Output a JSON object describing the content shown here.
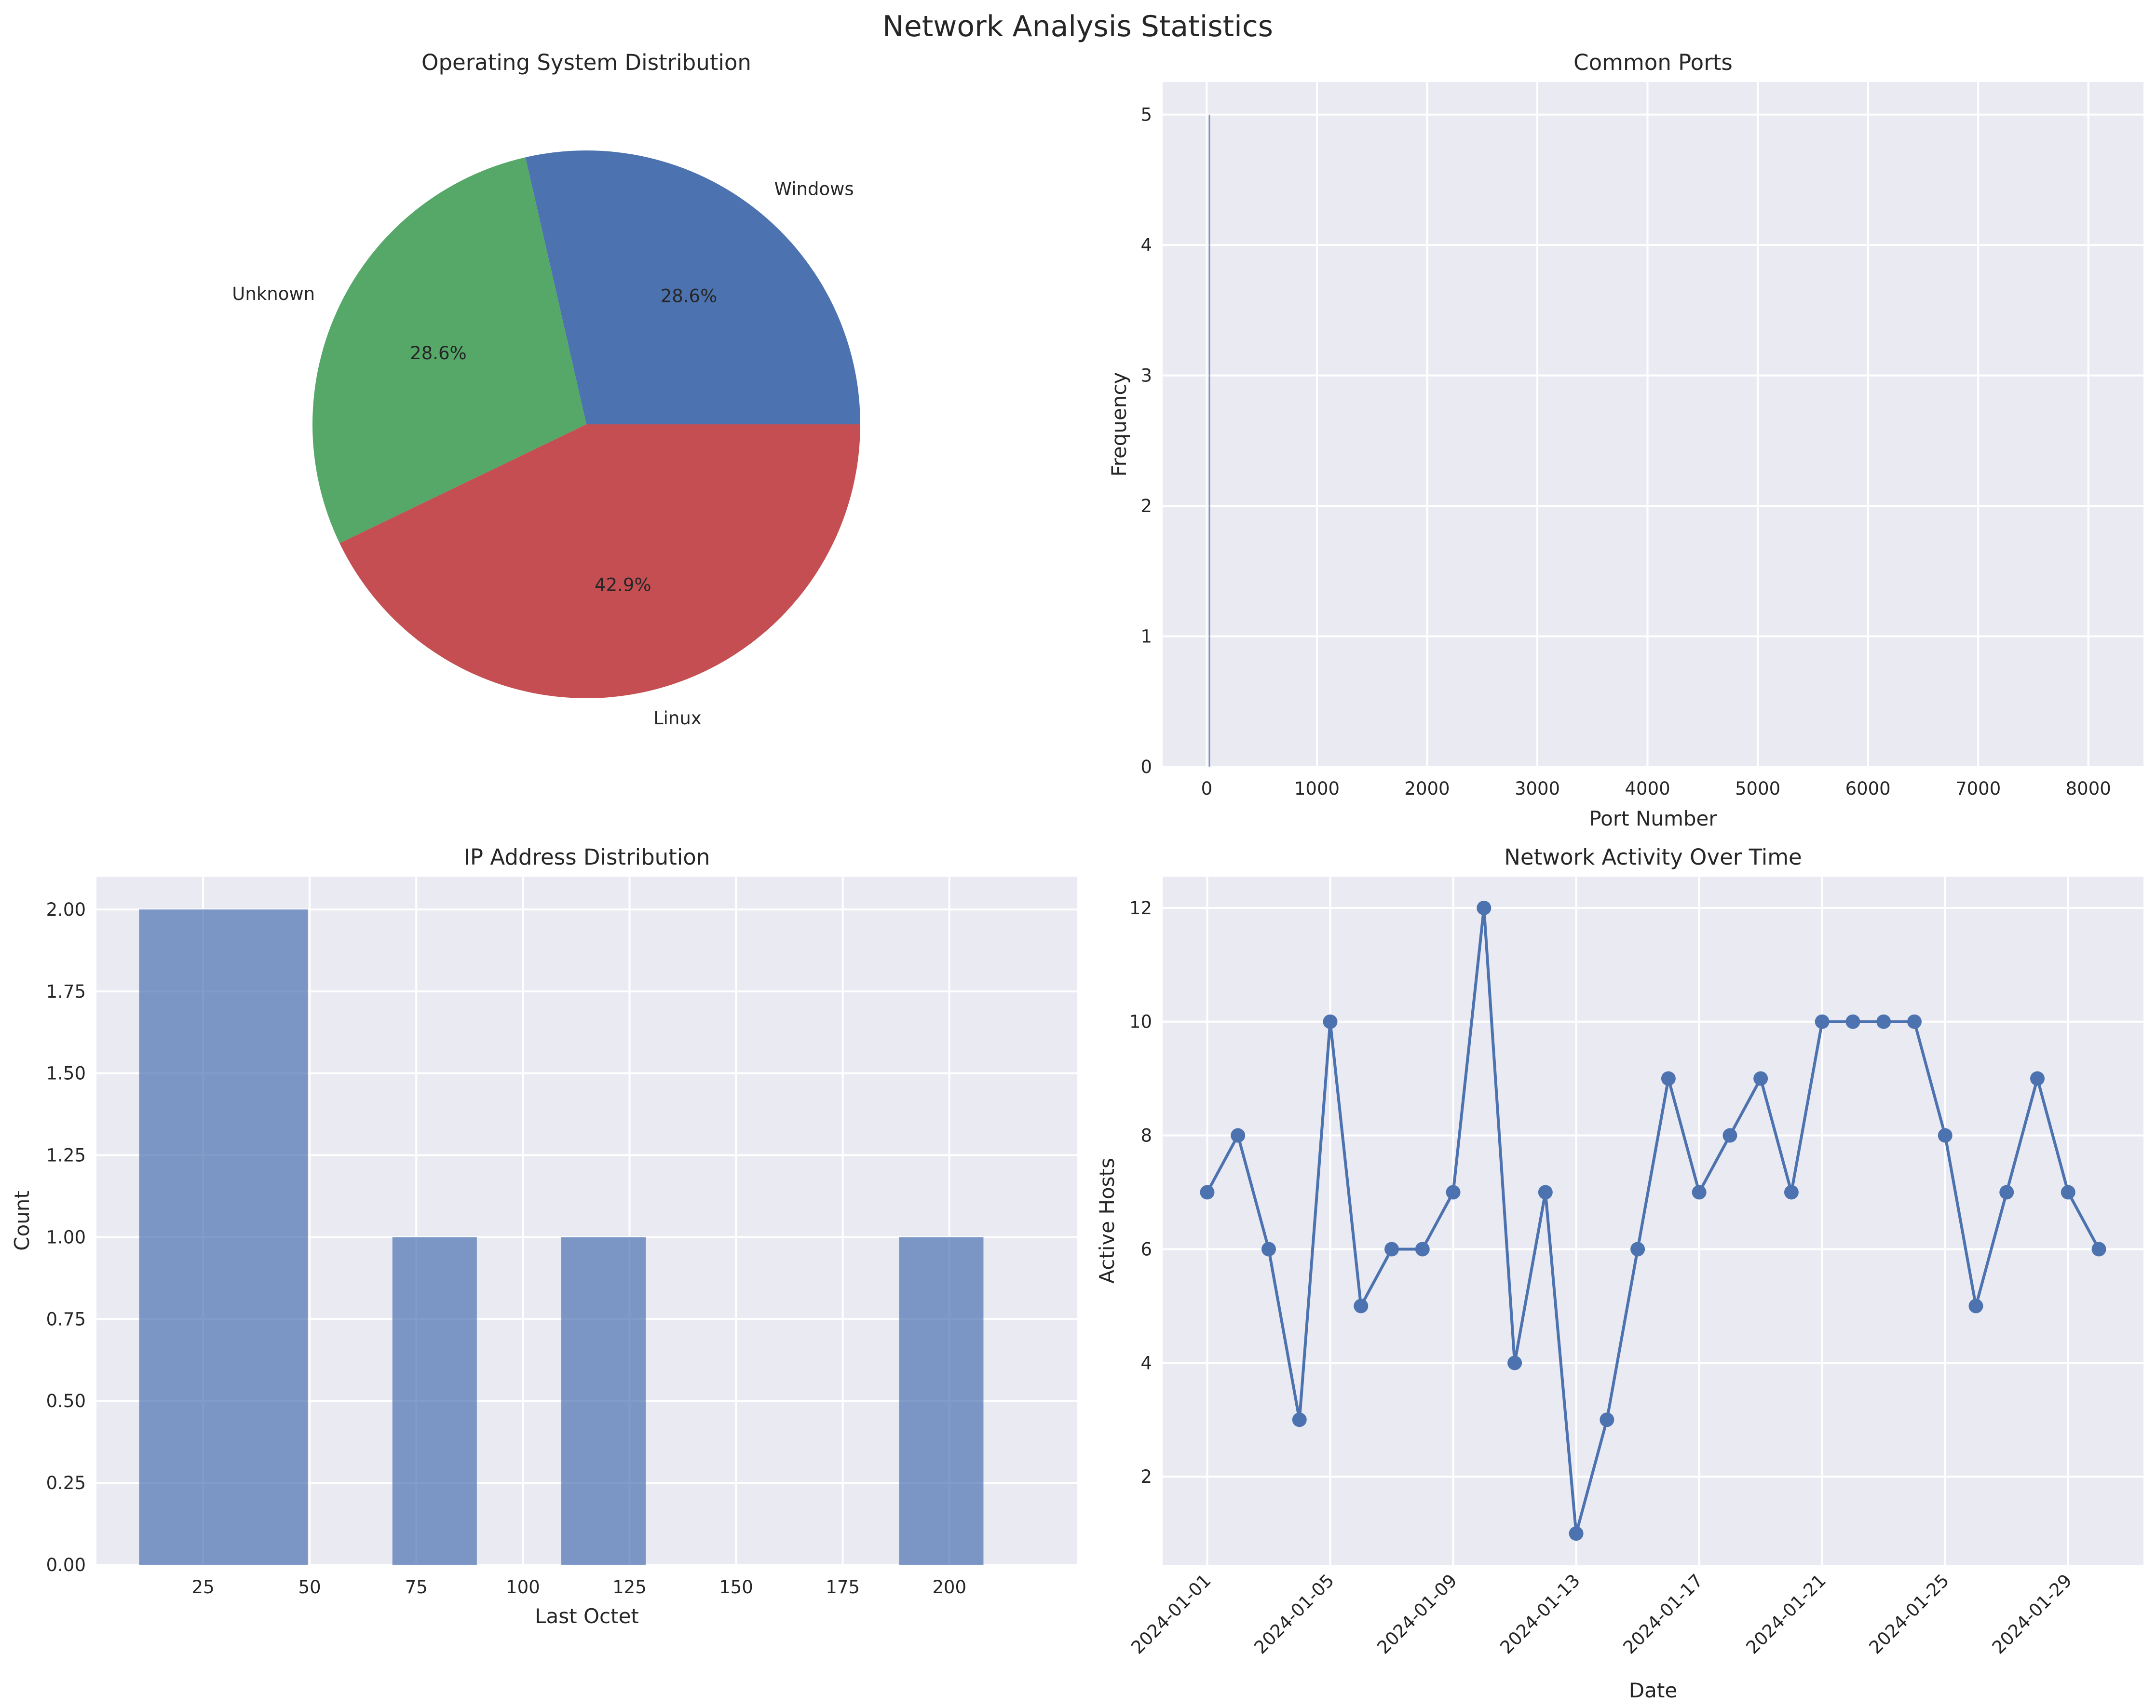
{
  "title": "Network Analysis Statistics",
  "chart_data": [
    {
      "type": "pie",
      "title": "Operating System Distribution",
      "labels": [
        "Windows",
        "Unknown",
        "Linux"
      ],
      "values": [
        28.6,
        28.6,
        42.9
      ],
      "pct_labels": [
        "28.6%",
        "28.6%",
        "42.9%"
      ],
      "colors": [
        "#4c72b0",
        "#55a868",
        "#c44e52"
      ]
    },
    {
      "type": "bar",
      "title": "Common Ports",
      "xlabel": "Port Number",
      "ylabel": "Frequency",
      "xlim": [
        -400,
        8500
      ],
      "ylim": [
        0,
        5.25
      ],
      "xticks": [
        0,
        1000,
        2000,
        3000,
        4000,
        5000,
        6000,
        7000,
        8000
      ],
      "yticks": [
        0,
        1,
        2,
        3,
        4,
        5
      ],
      "bars": [
        {
          "x": 22,
          "width": 8,
          "value": 5
        }
      ],
      "color": "#4c72b0"
    },
    {
      "type": "bar",
      "title": "IP Address Distribution",
      "xlabel": "Last Octet",
      "ylabel": "Count",
      "xlim": [
        0,
        230
      ],
      "ylim": [
        0,
        2.1
      ],
      "xticks": [
        25,
        50,
        75,
        100,
        125,
        150,
        175,
        200
      ],
      "yticks": [
        0.0,
        0.25,
        0.5,
        0.75,
        1.0,
        1.25,
        1.5,
        1.75,
        2.0
      ],
      "ytick_labels": [
        "0.00",
        "0.25",
        "0.50",
        "0.75",
        "1.00",
        "1.25",
        "1.50",
        "1.75",
        "2.00"
      ],
      "bins": [
        {
          "start": 10,
          "end": 49.6,
          "count": 2
        },
        {
          "start": 69.4,
          "end": 89.2,
          "count": 1
        },
        {
          "start": 109,
          "end": 128.8,
          "count": 1
        },
        {
          "start": 188.2,
          "end": 208,
          "count": 1
        }
      ],
      "color": "#4c72b0"
    },
    {
      "type": "line",
      "title": "Network Activity Over Time",
      "xlabel": "Date",
      "ylabel": "Active Hosts",
      "xlim": [
        -1.45,
        30.45
      ],
      "ylim": [
        0.45,
        12.55
      ],
      "x_tick_labels": [
        "2024-01-01",
        "2024-01-05",
        "2024-01-09",
        "2024-01-13",
        "2024-01-17",
        "2024-01-21",
        "2024-01-25",
        "2024-01-29"
      ],
      "x_tick_positions": [
        0,
        4,
        8,
        12,
        16,
        20,
        24,
        28
      ],
      "yticks": [
        2,
        4,
        6,
        8,
        10,
        12
      ],
      "x": [
        "2024-01-01",
        "2024-01-02",
        "2024-01-03",
        "2024-01-04",
        "2024-01-05",
        "2024-01-06",
        "2024-01-07",
        "2024-01-08",
        "2024-01-09",
        "2024-01-10",
        "2024-01-11",
        "2024-01-12",
        "2024-01-13",
        "2024-01-14",
        "2024-01-15",
        "2024-01-16",
        "2024-01-17",
        "2024-01-18",
        "2024-01-19",
        "2024-01-20",
        "2024-01-21",
        "2024-01-22",
        "2024-01-23",
        "2024-01-24",
        "2024-01-25",
        "2024-01-26",
        "2024-01-27",
        "2024-01-28",
        "2024-01-29",
        "2024-01-30"
      ],
      "values": [
        7,
        8,
        6,
        3,
        10,
        5,
        6,
        6,
        7,
        12,
        4,
        7,
        1,
        3,
        6,
        9,
        7,
        8,
        9,
        7,
        10,
        10,
        10,
        10,
        8,
        5,
        7,
        9,
        7,
        6
      ],
      "color": "#4c72b0"
    }
  ]
}
